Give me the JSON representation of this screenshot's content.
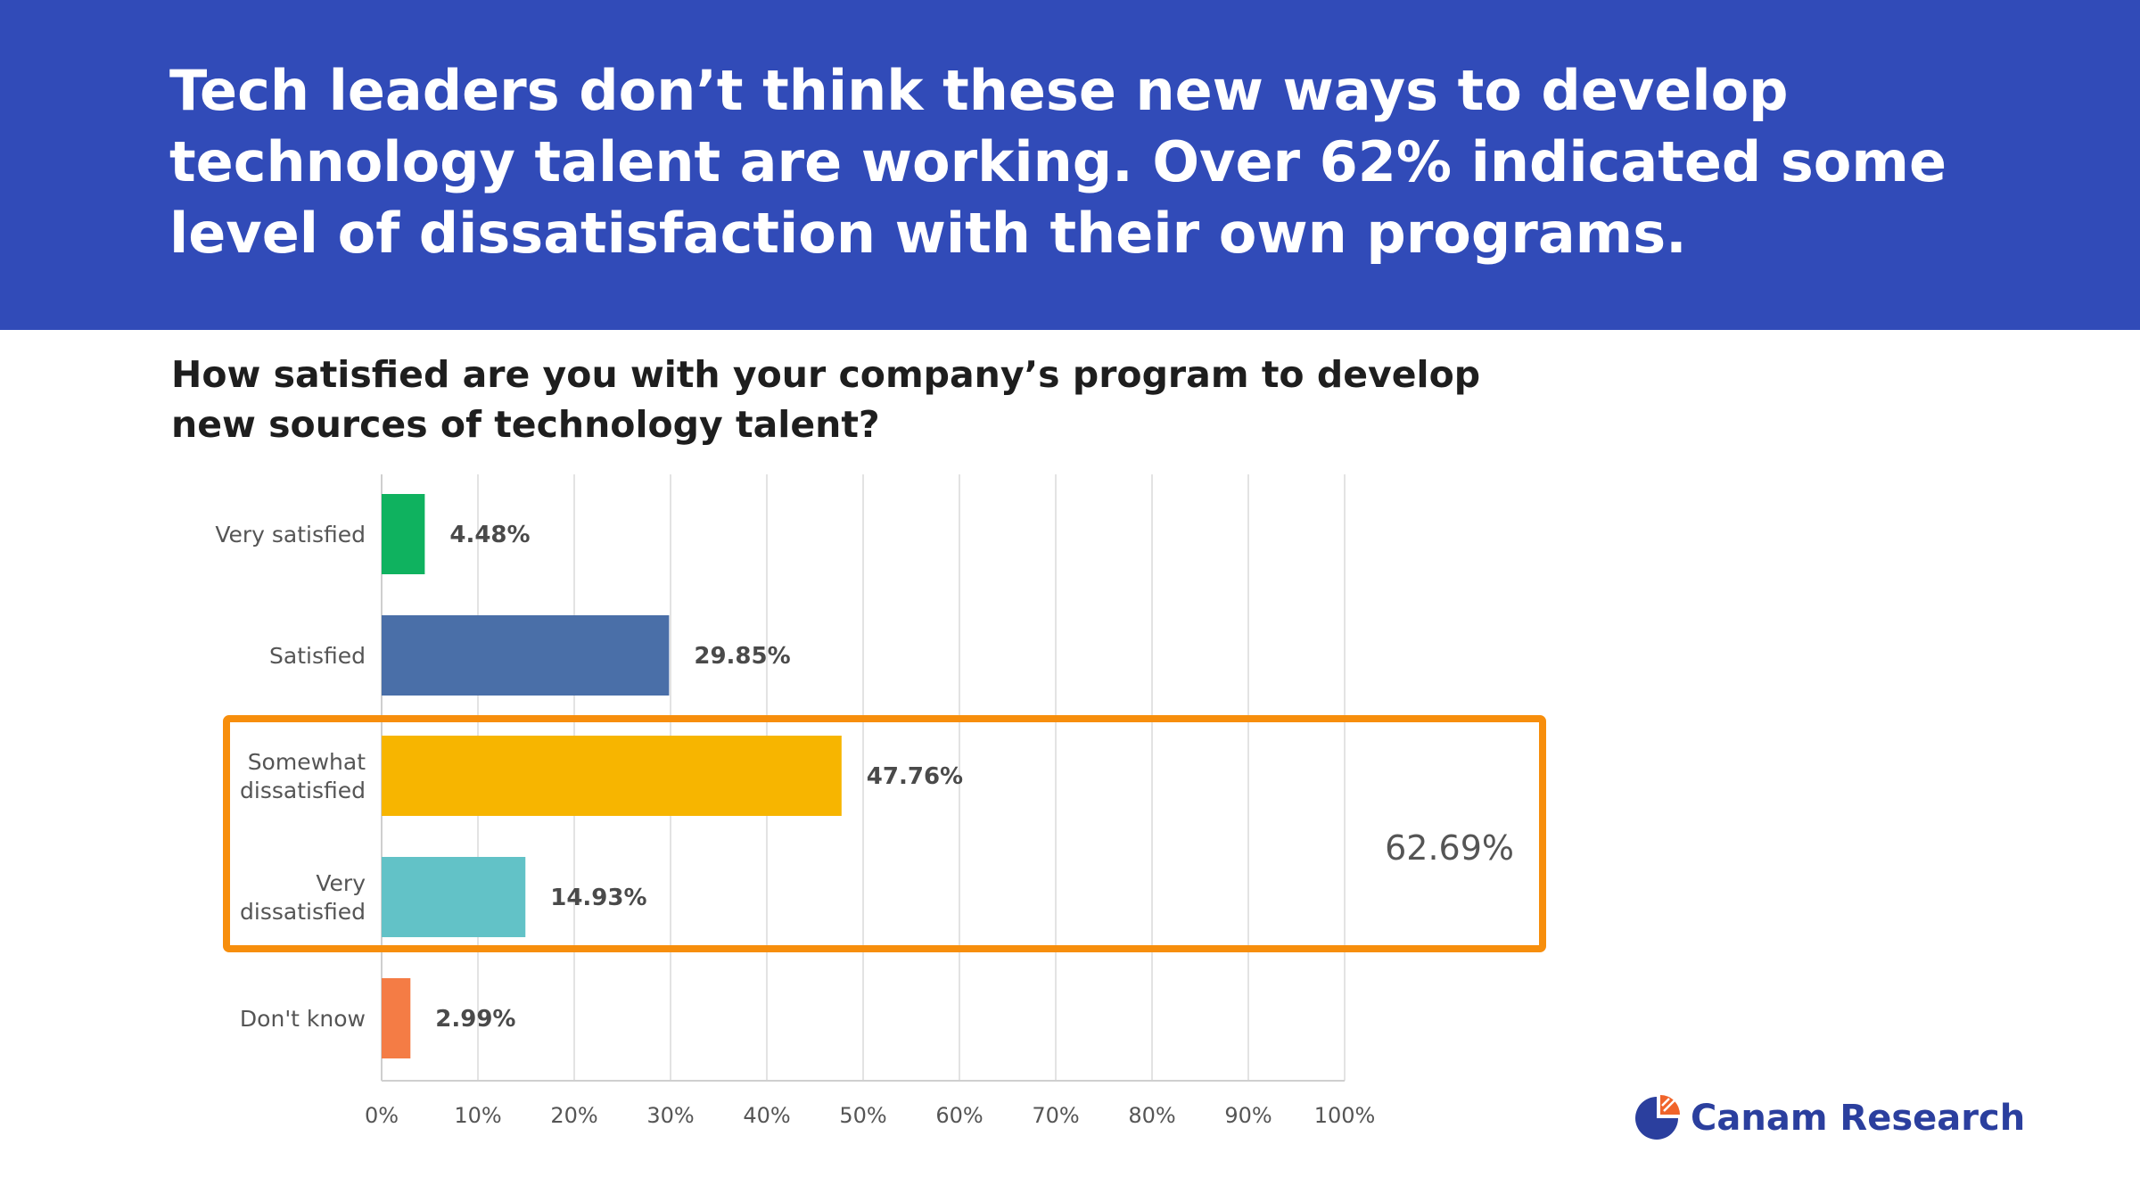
{
  "header": {
    "headline": "Tech leaders don’t think these new ways to develop technology talent are working. Over 62% indicated some level of dissatisfaction with their own programs.",
    "background_color": "#314bb8"
  },
  "question": "How satisfied are you with your company’s program to develop new sources of technology talent?",
  "chart_data": {
    "type": "bar",
    "orientation": "horizontal",
    "categories": [
      [
        "Very satisfied"
      ],
      [
        "Satisfied"
      ],
      [
        "Somewhat",
        "dissatisfied"
      ],
      [
        "Very",
        "dissatisfied"
      ],
      [
        "Don't know"
      ]
    ],
    "values": [
      4.48,
      29.85,
      47.76,
      14.93,
      2.99
    ],
    "value_labels": [
      "4.48%",
      "29.85%",
      "47.76%",
      "14.93%",
      "2.99%"
    ],
    "colors": [
      "#0fb25f",
      "#4a6fa8",
      "#f7b500",
      "#62c2c7",
      "#f47c45"
    ],
    "xlim": [
      0,
      100
    ],
    "xticks": [
      "0%",
      "10%",
      "20%",
      "30%",
      "40%",
      "50%",
      "60%",
      "70%",
      "80%",
      "90%",
      "100%"
    ],
    "grid": true,
    "highlight": {
      "categories": [
        "Somewhat dissatisfied",
        "Very dissatisfied"
      ],
      "label": "62.69%",
      "color": "#f78e0c"
    }
  },
  "logo": {
    "text": "Canam Research",
    "icon": "pie-chart-icon",
    "color": "#2b3f9e",
    "accent_color": "#f0642a"
  }
}
